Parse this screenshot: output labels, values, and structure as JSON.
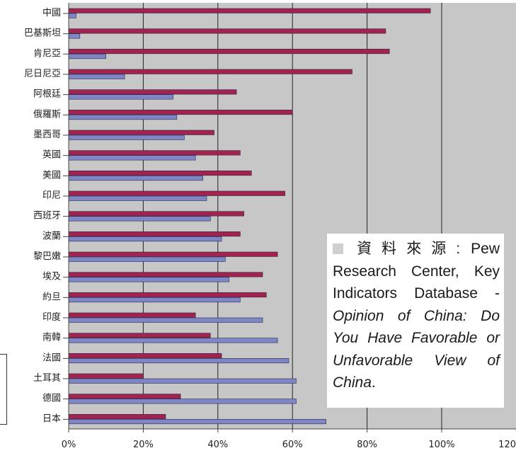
{
  "chart_data": {
    "type": "bar",
    "orientation": "horizontal",
    "categories": [
      "中國",
      "巴基斯坦",
      "肯尼亞",
      "尼日尼亞",
      "阿根廷",
      "俄羅斯",
      "墨西哥",
      "英國",
      "美國",
      "印尼",
      "西班牙",
      "波蘭",
      "黎巴嫩",
      "埃及",
      "約旦",
      "印度",
      "南韓",
      "法國",
      "土耳其",
      "德國",
      "日本"
    ],
    "series": [
      {
        "color": "#a3234f",
        "values": [
          97,
          85,
          86,
          76,
          45,
          60,
          39,
          46,
          49,
          58,
          47,
          46,
          56,
          52,
          53,
          34,
          38,
          41,
          20,
          30,
          26
        ]
      },
      {
        "color": "#7f86c6",
        "values": [
          2,
          3,
          10,
          15,
          28,
          29,
          31,
          34,
          36,
          37,
          38,
          41,
          42,
          43,
          46,
          52,
          56,
          59,
          61,
          61,
          69
        ]
      }
    ],
    "xticks": [
      "0%",
      "20%",
      "40%",
      "60%",
      "80%",
      "100%",
      "120"
    ],
    "xlim": [
      0,
      120
    ],
    "grid": true,
    "title": "",
    "xlabel": "",
    "ylabel": ""
  },
  "source_note": {
    "lead": "資料來源",
    "colon": ": Pew",
    "text1": "Research Center, Key Indicators Database -",
    "italic": "Opinion of China: Do You Have Favorable or Unfavorable View of China",
    "end": "."
  },
  "colors": {
    "plot_bg": "#c7c7c7",
    "gridline": "#222222"
  }
}
